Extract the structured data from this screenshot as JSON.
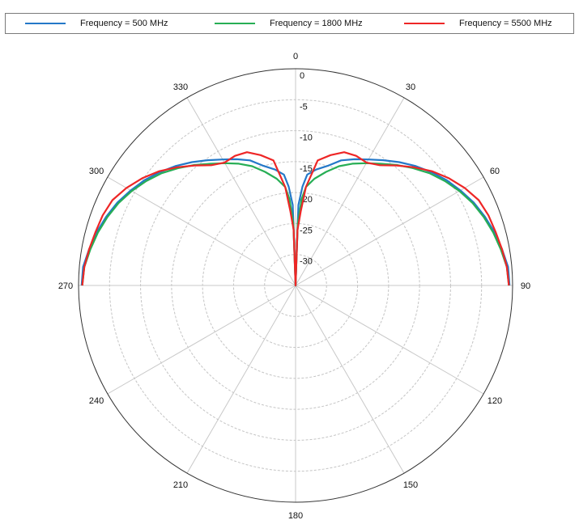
{
  "chart_data": {
    "type": "line",
    "polar": true,
    "angle_ticks": [
      "0",
      "30",
      "60",
      "90",
      "120",
      "150",
      "180",
      "210",
      "240",
      "270",
      "300",
      "330"
    ],
    "radial_ticks": [
      0,
      -5,
      -10,
      -15,
      -20,
      -25,
      -30
    ],
    "radial_tick_labels": [
      "0",
      "-5",
      "-10",
      "-15",
      "-20",
      "-25",
      "-30"
    ],
    "radial_range": [
      -35,
      0
    ],
    "grid": true,
    "legend_position": "top",
    "theta": [
      0,
      2,
      4,
      6,
      10,
      15,
      20,
      25,
      30,
      35,
      40,
      45,
      50,
      55,
      60,
      65,
      70,
      75,
      80,
      85,
      90
    ],
    "series": [
      {
        "name": "Frequency = 500 MHz",
        "color": "#2478c8",
        "values": [
          -35,
          -22,
          -19,
          -17,
          -16,
          -15,
          -13.5,
          -12.5,
          -11.5,
          -10.3,
          -9,
          -7.7,
          -6.5,
          -5.3,
          -4.3,
          -3.3,
          -2.5,
          -1.8,
          -1.2,
          -0.6,
          -0.5
        ]
      },
      {
        "name": "Frequency = 1800 MHz",
        "color": "#27ae55",
        "values": [
          -35,
          -25,
          -21,
          -19,
          -17.5,
          -16,
          -14.5,
          -13.3,
          -12.2,
          -11,
          -9.6,
          -8.2,
          -6.8,
          -5.6,
          -4.5,
          -3.5,
          -2.7,
          -2.0,
          -1.4,
          -0.8,
          -0.6
        ]
      },
      {
        "name": "Frequency = 5500 MHz",
        "color": "#ee2626",
        "values": [
          -35,
          -26,
          -23,
          -19,
          -14.5,
          -13.2,
          -12.1,
          -11.9,
          -12.1,
          -11.3,
          -9.7,
          -8.0,
          -6.3,
          -4.8,
          -3.5,
          -2.4,
          -1.9,
          -1.6,
          -1.2,
          -0.8,
          -0.6
        ]
      }
    ]
  }
}
